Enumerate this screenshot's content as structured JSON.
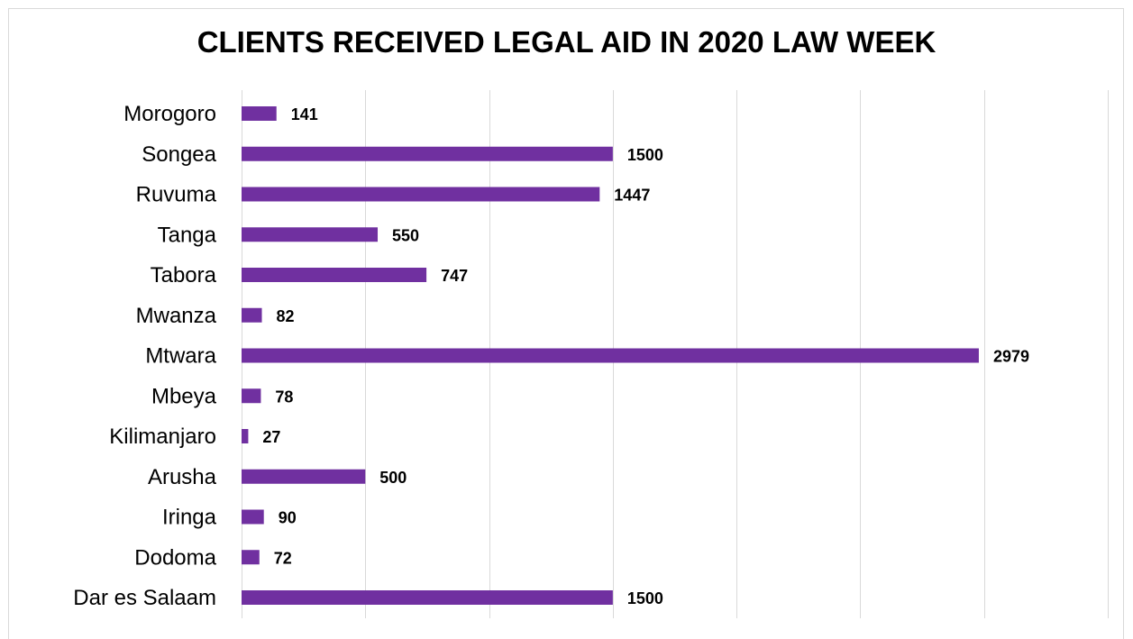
{
  "chart_data": {
    "type": "bar",
    "orientation": "horizontal",
    "title": "CLIENTS RECEIVED LEGAL AID IN 2020 LAW WEEK",
    "categories": [
      "Morogoro",
      "Songea",
      "Ruvuma",
      "Tanga",
      "Tabora",
      "Mwanza",
      "Mtwara",
      "Mbeya",
      "Kilimanjaro",
      "Arusha",
      "Iringa",
      "Dodoma",
      "Dar es Salaam"
    ],
    "values": [
      141,
      1500,
      1447,
      550,
      747,
      82,
      2979,
      78,
      27,
      500,
      90,
      72,
      1500
    ],
    "xlim": [
      0,
      3500
    ],
    "grid": true,
    "data_labels": true,
    "colors": {
      "bar": "#7030a0",
      "grid": "#d9d9d9"
    }
  }
}
